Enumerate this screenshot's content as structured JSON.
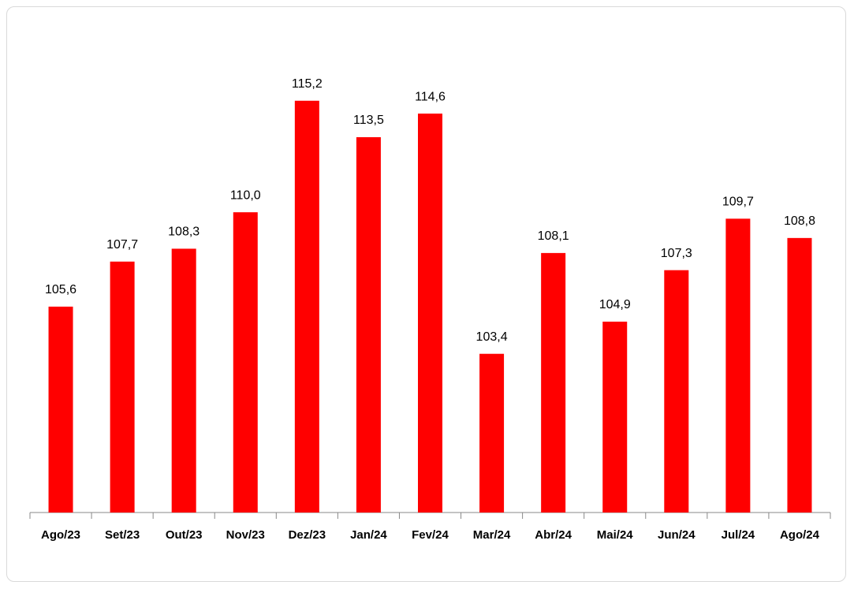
{
  "chart_data": {
    "type": "bar",
    "categories": [
      "Ago/23",
      "Set/23",
      "Out/23",
      "Nov/23",
      "Dez/23",
      "Jan/24",
      "Fev/24",
      "Mar/24",
      "Abr/24",
      "Mai/24",
      "Jun/24",
      "Jul/24",
      "Ago/24"
    ],
    "values": [
      105.6,
      107.7,
      108.3,
      110.0,
      115.2,
      113.5,
      114.6,
      103.4,
      108.1,
      104.9,
      107.3,
      109.7,
      108.8
    ],
    "value_labels": [
      "105,6",
      "107,7",
      "108,3",
      "110,0",
      "115,2",
      "113,5",
      "114,6",
      "103,4",
      "108,1",
      "104,9",
      "107,3",
      "109,7",
      "108,8"
    ],
    "color": "#ff0000",
    "ylim": [
      96,
      118
    ]
  }
}
